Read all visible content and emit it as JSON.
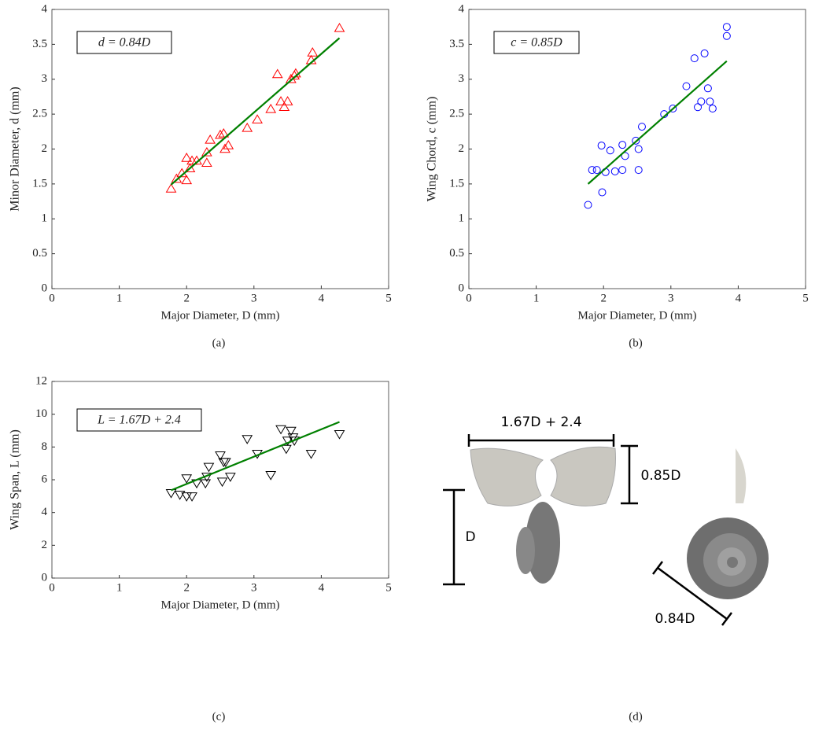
{
  "chart_data": [
    {
      "type": "scatter",
      "panel_label": "(a)",
      "annotation": "d = 0.84D",
      "xlabel": "Major Diameter, D (mm)",
      "ylabel": "Minor Diameter, d (mm)",
      "marker": "triangle-up",
      "color": "#ff0000",
      "x": [
        1.77,
        1.85,
        1.93,
        2.0,
        2.0,
        2.05,
        2.08,
        2.15,
        2.3,
        2.3,
        2.35,
        2.5,
        2.55,
        2.57,
        2.62,
        2.9,
        3.05,
        3.25,
        3.35,
        3.4,
        3.45,
        3.5,
        3.55,
        3.6,
        3.62,
        3.85,
        3.87,
        4.27
      ],
      "values": [
        1.43,
        1.57,
        1.65,
        1.87,
        1.55,
        1.72,
        1.83,
        1.83,
        1.95,
        1.8,
        2.13,
        2.2,
        2.22,
        2.0,
        2.05,
        2.3,
        2.42,
        2.57,
        3.07,
        2.68,
        2.6,
        2.68,
        3.0,
        3.05,
        3.08,
        3.27,
        3.38,
        3.73
      ],
      "fit": {
        "color": "#008000",
        "x": [
          1.77,
          4.27
        ],
        "values": [
          1.49,
          3.59
        ]
      },
      "xlim": [
        0,
        5
      ],
      "ylim": [
        0,
        4
      ],
      "xticks": [
        0,
        1,
        2,
        3,
        4,
        5
      ],
      "yticks": [
        0,
        0.5,
        1,
        1.5,
        2,
        2.5,
        3,
        3.5,
        4
      ]
    },
    {
      "type": "scatter",
      "panel_label": "(b)",
      "annotation": "c = 0.85D",
      "xlabel": "Major Diameter, D (mm)",
      "ylabel": "Wing Chord, c (mm)",
      "marker": "circle",
      "color": "#0000ff",
      "x": [
        1.77,
        1.83,
        1.9,
        1.97,
        1.98,
        2.03,
        2.1,
        2.17,
        2.28,
        2.28,
        2.32,
        2.48,
        2.52,
        2.52,
        2.57,
        2.9,
        3.03,
        3.23,
        3.35,
        3.4,
        3.45,
        3.5,
        3.55,
        3.58,
        3.62,
        3.83,
        3.83
      ],
      "values": [
        1.2,
        1.7,
        1.7,
        2.05,
        1.38,
        1.67,
        1.98,
        1.68,
        2.06,
        1.7,
        1.9,
        2.12,
        2.0,
        1.7,
        2.32,
        2.5,
        2.58,
        2.9,
        3.3,
        2.6,
        2.68,
        3.37,
        2.87,
        2.68,
        2.58,
        3.75,
        3.62
      ],
      "fit": {
        "color": "#008000",
        "x": [
          1.77,
          3.83
        ],
        "values": [
          1.5,
          3.26
        ]
      },
      "xlim": [
        0,
        5
      ],
      "ylim": [
        0,
        4
      ],
      "xticks": [
        0,
        1,
        2,
        3,
        4,
        5
      ],
      "yticks": [
        0,
        0.5,
        1,
        1.5,
        2,
        2.5,
        3,
        3.5,
        4
      ]
    },
    {
      "type": "scatter",
      "panel_label": "(c)",
      "annotation": "L = 1.67D + 2.4",
      "xlabel": "Major Diameter, D (mm)",
      "ylabel": "Wing Span, L (mm)",
      "marker": "triangle-down",
      "color": "#000000",
      "x": [
        1.77,
        1.9,
        2.0,
        2.0,
        2.08,
        2.15,
        2.28,
        2.3,
        2.33,
        2.5,
        2.53,
        2.55,
        2.58,
        2.65,
        2.9,
        3.05,
        3.25,
        3.4,
        3.48,
        3.5,
        3.55,
        3.58,
        3.6,
        3.85,
        4.27
      ],
      "values": [
        5.2,
        5.1,
        6.1,
        5.0,
        5.0,
        5.8,
        5.8,
        6.2,
        6.8,
        7.5,
        5.9,
        7.1,
        7.1,
        6.2,
        8.5,
        7.6,
        6.3,
        9.1,
        7.9,
        8.4,
        9.0,
        8.6,
        8.4,
        7.6,
        8.8
      ],
      "fit": {
        "color": "#008000",
        "x": [
          1.77,
          4.27
        ],
        "values": [
          5.36,
          9.53
        ]
      },
      "xlim": [
        0,
        5
      ],
      "ylim": [
        0,
        12
      ],
      "xticks": [
        0,
        1,
        2,
        3,
        4,
        5
      ],
      "yticks": [
        0,
        2,
        4,
        6,
        8,
        10,
        12
      ]
    }
  ],
  "diagram": {
    "panel_label": "(d)",
    "span_label": "1.67D + 2.4",
    "chord_label": "0.85D",
    "major_label": "D",
    "minor_label": "0.84D"
  }
}
